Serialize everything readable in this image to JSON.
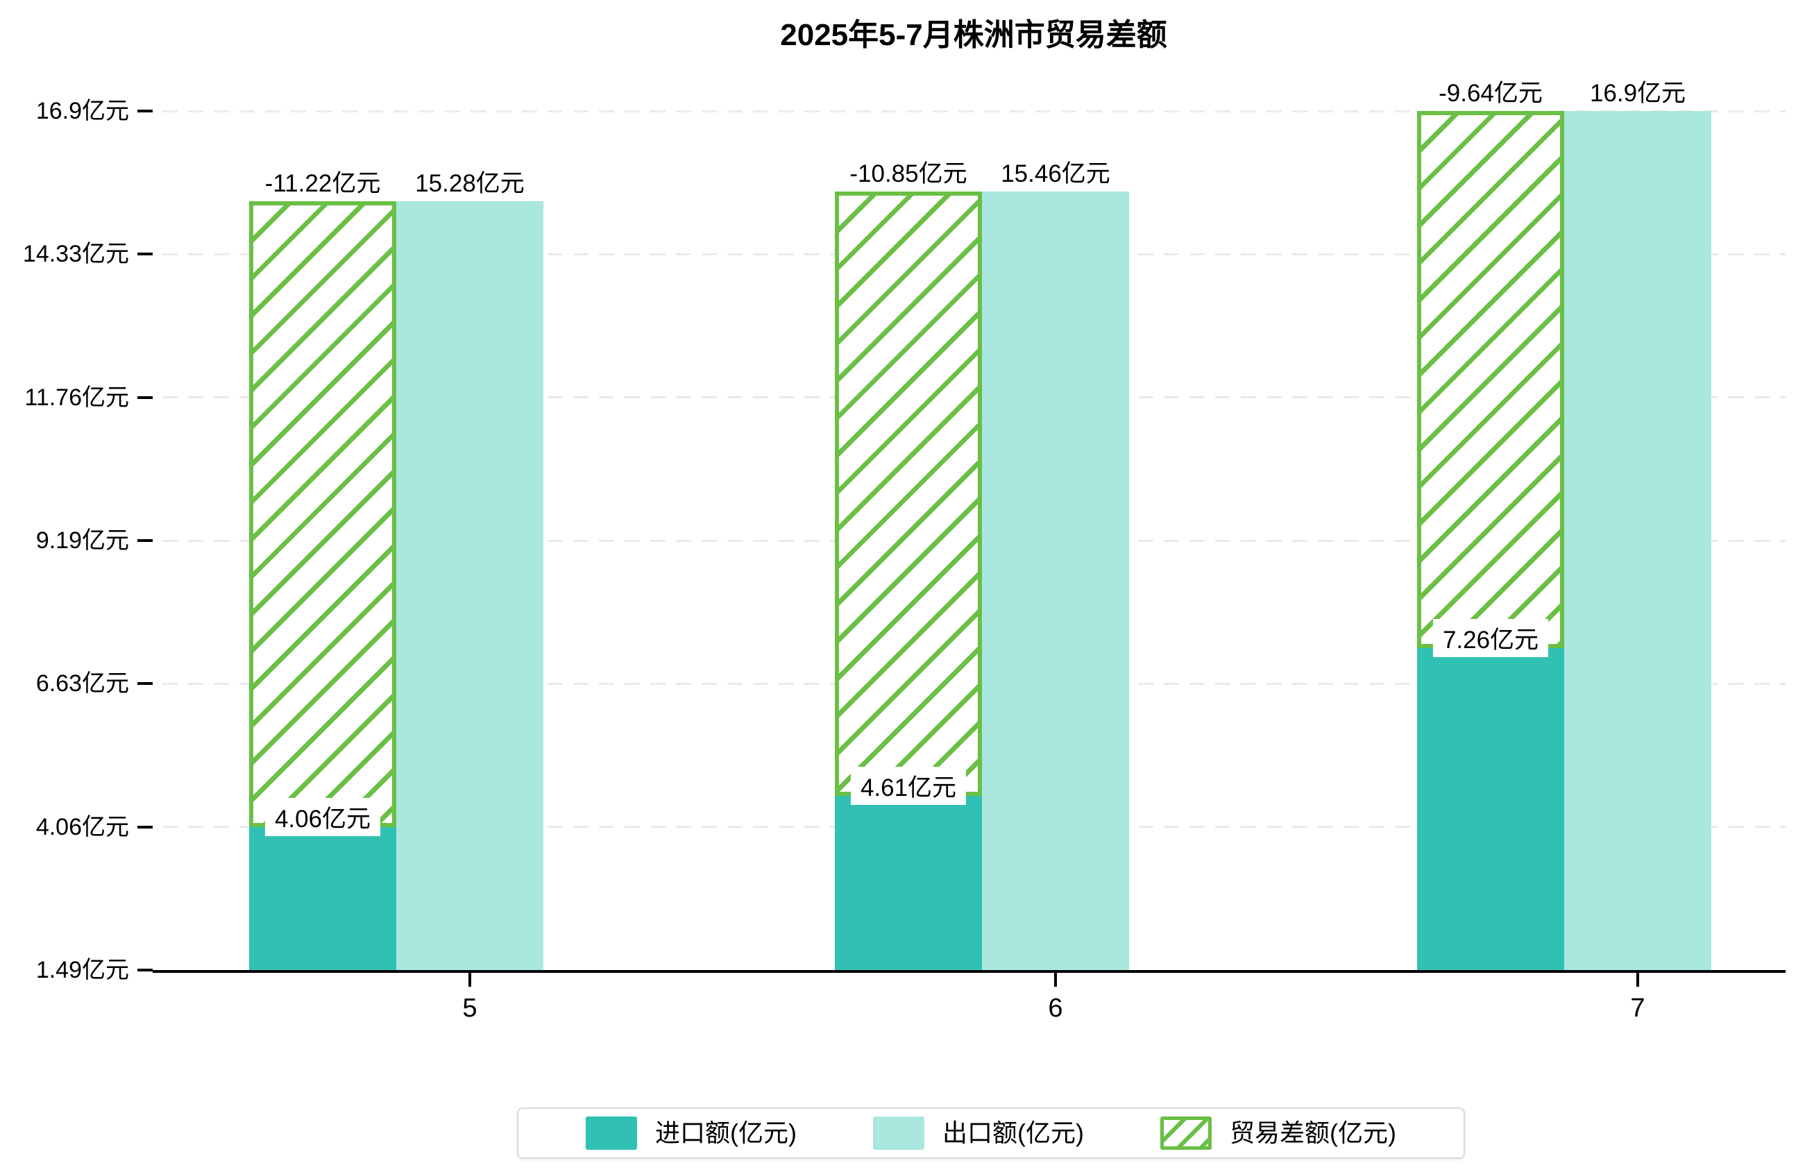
{
  "title": "2025年5-7月株洲市贸易差额",
  "chart_data": {
    "type": "bar",
    "title": "2025年5-7月株洲市贸易差额",
    "categories": [
      "5",
      "6",
      "7"
    ],
    "series": [
      {
        "name": "进口额(亿元)",
        "role": "import",
        "color": "#30c1b4",
        "values": [
          4.06,
          4.61,
          7.26
        ],
        "data_labels": [
          "4.06亿元",
          "4.61亿元",
          "7.26亿元"
        ]
      },
      {
        "name": "出口额(亿元)",
        "role": "export",
        "color": "#a9e7df",
        "values": [
          15.28,
          15.46,
          16.9
        ],
        "data_labels": [
          "15.28亿元",
          "15.46亿元",
          "16.9亿元"
        ]
      },
      {
        "name": "贸易差额(亿元)",
        "role": "trade-balance",
        "color": "#6abf45",
        "pattern": "diagonal-hatch",
        "render": "spans-from-import-top-to-export-top-over-import-column",
        "values": [
          -11.22,
          -10.85,
          -9.64
        ],
        "data_labels": [
          "-11.22亿元",
          "-10.85亿元",
          "-9.64亿元"
        ]
      }
    ],
    "y_axis": {
      "tick_labels": [
        "1.49亿元",
        "4.06亿元",
        "6.63亿元",
        "9.19亿元",
        "11.76亿元",
        "14.33亿元",
        "16.9亿元"
      ],
      "tick_values": [
        1.49,
        4.06,
        6.63,
        9.19,
        11.76,
        14.33,
        16.9
      ],
      "range": [
        1.49,
        16.9
      ],
      "unit": "亿元"
    },
    "x_axis": {
      "tick_labels": [
        "5",
        "6",
        "7"
      ]
    },
    "grid": {
      "visible": true,
      "style": "dashed",
      "color": "#eaeaea"
    },
    "legend": {
      "position": "bottom",
      "items": [
        "进口额(亿元)",
        "出口额(亿元)",
        "贸易差额(亿元)"
      ]
    }
  }
}
